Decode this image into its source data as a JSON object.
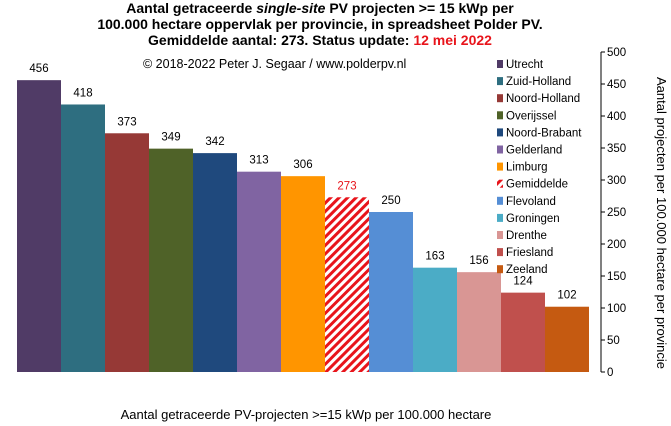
{
  "title": {
    "line1_a": "Aantal getraceerde ",
    "line1_em": "single-site",
    "line1_b": " PV projecten >= 15 kWp per",
    "line2": "100.000 hectare oppervlak per provincie, in spreadsheet Polder PV.",
    "line3_a": "Gemiddelde aantal: 273. Status update: ",
    "line3_date": "12 mei 2022"
  },
  "copyright": "© 2018-2022  Peter J. Segaar / www.polderpv.nl",
  "chart_data": {
    "type": "bar",
    "title": "Aantal getraceerde single-site PV projecten >= 15 kWp per 100.000 hectare oppervlak per provincie, in spreadsheet Polder PV. Gemiddelde aantal: 273. Status update: 12 mei 2022",
    "xlabel": "Aantal getraceerde PV-projecten >=15 kWp per 100.000 hectare",
    "ylabel": "Aantal projecten per 100.000 hectare per provincie",
    "ylim": [
      0,
      500
    ],
    "yticks": [
      0,
      50,
      100,
      150,
      200,
      250,
      300,
      350,
      400,
      450,
      500
    ],
    "grid": false,
    "legend_position": "top-right",
    "categories": [
      "Utrecht",
      "Zuid-Holland",
      "Noord-Holland",
      "Overijssel",
      "Noord-Brabant",
      "Gelderland",
      "Limburg",
      "Gemiddelde",
      "Flevoland",
      "Groningen",
      "Drenthe",
      "Friesland",
      "Zeeland"
    ],
    "values": [
      456,
      418,
      373,
      349,
      342,
      313,
      306,
      273,
      250,
      163,
      156,
      124,
      102
    ],
    "colors": [
      "#503b66",
      "#2e6e80",
      "#963936",
      "#4f6228",
      "#1f497d",
      "#8064a2",
      "#ff9500",
      "#e8141b",
      "#558ed5",
      "#4bacc6",
      "#d99694",
      "#c0504d",
      "#c55a11"
    ],
    "patterns": [
      "solid",
      "solid",
      "solid",
      "solid",
      "solid",
      "solid",
      "solid",
      "hatched",
      "solid",
      "solid",
      "solid",
      "solid",
      "solid"
    ],
    "label_colors": [
      "#000000",
      "#000000",
      "#000000",
      "#000000",
      "#000000",
      "#000000",
      "#000000",
      "#e8141b",
      "#000000",
      "#000000",
      "#000000",
      "#000000",
      "#000000"
    ]
  }
}
